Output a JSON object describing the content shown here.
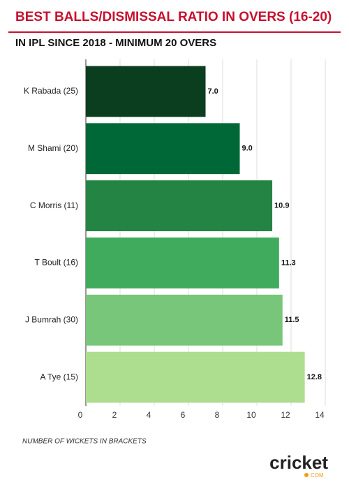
{
  "chart_data": {
    "type": "hbar",
    "title": "BEST BALLS/DISMISSAL RATIO IN OVERS (16-20)",
    "subtitle": "IN IPL SINCE 2018 - MINIMUM 20 OVERS",
    "categories": [
      "K Rabada (25)",
      "M Shami (20)",
      "C Morris (11)",
      "T Boult (16)",
      "J Bumrah (30)",
      "A Tye (15)"
    ],
    "values": [
      7.0,
      9.0,
      10.9,
      11.3,
      11.5,
      12.8
    ],
    "value_labels": [
      "7.0",
      "9.0",
      "10.9",
      "11.3",
      "11.5",
      "12.8"
    ],
    "colors": [
      "#0b3d1f",
      "#006837",
      "#238443",
      "#41ab5d",
      "#78c679",
      "#addd8e"
    ],
    "xlim": [
      0,
      14
    ],
    "xticks": [
      0,
      2,
      4,
      6,
      8,
      10,
      12,
      14
    ],
    "grid": true,
    "note": "NUMBER OF WICKETS IN BRACKETS"
  },
  "logo": {
    "name": "cricket",
    "suffix": "COM"
  }
}
